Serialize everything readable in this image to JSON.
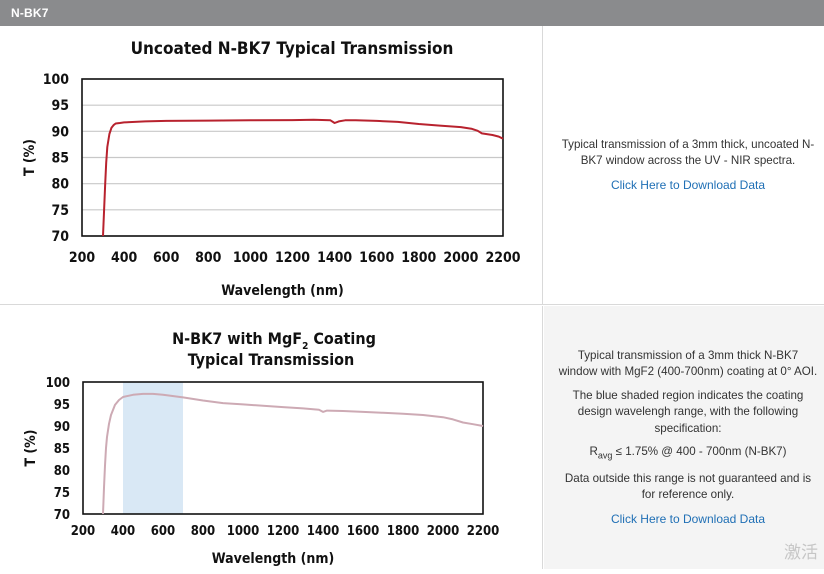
{
  "section_title": "N-BK7",
  "rows": [
    {
      "description": [
        "Typical transmission of a 3mm thick, uncoated N-BK7 window across the UV - NIR spectra."
      ],
      "download_label": "Click Here to Download Data"
    },
    {
      "description": [
        "Typical transmission of a 3mm thick N-BK7 window with MgF2 (400-700nm) coating at 0° AOI.",
        "The blue shaded region indicates the coating design wavelengh range, with the following specification:"
      ],
      "spec": {
        "symbol": "R",
        "subscript": "avg",
        "text": " ≤ 1.75% @ 400 - 700nm (N-BK7)"
      },
      "note": "Data outside this range is not guaranteed and is for reference only.",
      "download_label": "Click Here to Download Data"
    }
  ],
  "watermark": "激活",
  "chart_data": [
    {
      "type": "line",
      "title": "Uncoated N-BK7 Typical Transmission",
      "xlabel": "Wavelength (nm)",
      "ylabel": "T (%)",
      "xlim": [
        200,
        2200
      ],
      "ylim": [
        70,
        100
      ],
      "xticks": [
        200,
        400,
        600,
        800,
        1000,
        1200,
        1400,
        1600,
        1800,
        2000,
        2200
      ],
      "yticks": [
        70,
        75,
        80,
        85,
        90,
        95,
        100
      ],
      "grid": true,
      "line_color": "#b8222e",
      "series": [
        {
          "x": [
            300,
            305,
            310,
            315,
            320,
            330,
            340,
            350,
            360,
            380,
            400,
            500,
            600,
            800,
            1000,
            1200,
            1300,
            1380,
            1400,
            1420,
            1450,
            1500,
            1600,
            1700,
            1800,
            1900,
            2000,
            2050,
            2080,
            2100,
            2150,
            2180,
            2200
          ],
          "y": [
            70,
            75,
            80,
            84,
            87,
            89.5,
            90.7,
            91.2,
            91.5,
            91.6,
            91.7,
            91.9,
            92.0,
            92.05,
            92.1,
            92.15,
            92.2,
            92.1,
            91.6,
            91.9,
            92.1,
            92.1,
            92.0,
            91.8,
            91.4,
            91.1,
            90.8,
            90.5,
            90.1,
            89.6,
            89.3,
            89.0,
            88.6
          ]
        }
      ]
    },
    {
      "type": "line",
      "title": [
        "N-BK7 with MgF",
        "2",
        " Coating",
        "Typical Transmission"
      ],
      "xlabel": "Wavelength (nm)",
      "ylabel": "T (%)",
      "xlim": [
        200,
        2200
      ],
      "ylim": [
        70,
        100
      ],
      "xticks": [
        200,
        400,
        600,
        800,
        1000,
        1200,
        1400,
        1600,
        1800,
        2000,
        2200
      ],
      "yticks": [
        70,
        75,
        80,
        85,
        90,
        95,
        100
      ],
      "grid": false,
      "line_color": "#cdaab4",
      "shaded_region": {
        "x": [
          400,
          700
        ],
        "color": "#d9e8f5"
      },
      "series": [
        {
          "x": [
            300,
            305,
            310,
            315,
            320,
            330,
            340,
            360,
            380,
            400,
            450,
            500,
            550,
            600,
            700,
            800,
            900,
            1000,
            1200,
            1300,
            1380,
            1400,
            1420,
            1500,
            1600,
            1700,
            1800,
            1900,
            2000,
            2050,
            2100,
            2150,
            2200
          ],
          "y": [
            70,
            76,
            81,
            85,
            87.5,
            90.5,
            92.5,
            94.8,
            95.9,
            96.6,
            97.1,
            97.3,
            97.3,
            97.1,
            96.5,
            95.8,
            95.2,
            94.9,
            94.3,
            94.0,
            93.7,
            93.2,
            93.5,
            93.4,
            93.2,
            93.0,
            92.8,
            92.5,
            92.0,
            91.5,
            90.8,
            90.4,
            90.0
          ]
        }
      ]
    }
  ]
}
